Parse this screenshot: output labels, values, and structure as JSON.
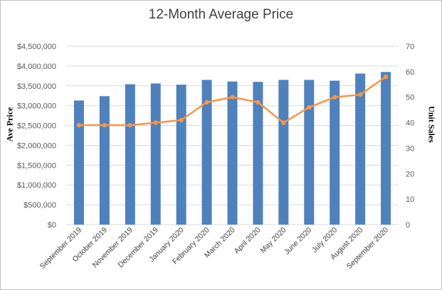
{
  "chart_data": {
    "type": "bar",
    "title": "12-Month Average Price",
    "ylabel": "Ave Price",
    "y2label": "Unit Sales",
    "categories": [
      "September 2019",
      "October 2019",
      "November 2019",
      "December 2019",
      "January 2020",
      "February 2020",
      "March 2020",
      "April 2020",
      "May 2020",
      "June 2020",
      "July 2020",
      "August 2020",
      "September 2020"
    ],
    "ylim": [
      0,
      4500000
    ],
    "y2lim": [
      0,
      70
    ],
    "yticks": [
      "$0",
      "$500,000",
      "$1,000,000",
      "$1,500,000",
      "$2,000,000",
      "$2,500,000",
      "$3,000,000",
      "$3,500,000",
      "$4,000,000",
      "$4,500,000"
    ],
    "y2ticks": [
      "0",
      "10",
      "20",
      "30",
      "40",
      "50",
      "60",
      "70"
    ],
    "grid": true,
    "legend": "none",
    "series": [
      {
        "type": "bar",
        "axis": "left",
        "color": "#4f81bd",
        "values": [
          3130000,
          3240000,
          3540000,
          3560000,
          3530000,
          3650000,
          3610000,
          3600000,
          3650000,
          3650000,
          3630000,
          3810000,
          3850000
        ]
      },
      {
        "type": "line",
        "axis": "right",
        "color": "#f79646",
        "values": [
          39,
          39,
          39,
          40,
          41,
          48,
          50,
          48,
          40,
          46,
          50,
          51,
          58
        ]
      }
    ]
  }
}
